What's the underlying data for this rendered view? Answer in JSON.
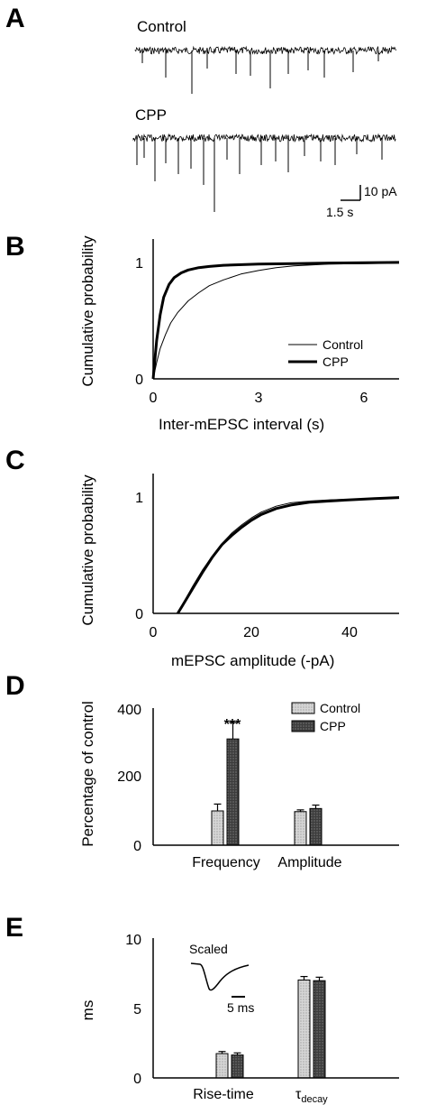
{
  "panels": {
    "a": "A",
    "b": "B",
    "c": "C",
    "d": "D",
    "e": "E"
  },
  "traces": {
    "control_label": "Control",
    "cpp_label": "CPP",
    "scale_y": "10 pA",
    "scale_x": "1.5 s"
  },
  "chart_data": [
    {
      "panel": "B",
      "type": "line",
      "ylabel": "Cumulative probability",
      "xlabel": "Inter-mEPSC interval (s)",
      "xlim": [
        0,
        7
      ],
      "ylim": [
        0,
        1.1
      ],
      "xticks": [
        "0",
        "3",
        "6"
      ],
      "yticks": [
        "0",
        "1"
      ],
      "legend_position": "bottom-right",
      "series": [
        {
          "name": "Control",
          "style": "thin",
          "x": [
            0,
            0.1,
            0.2,
            0.35,
            0.5,
            0.7,
            1.0,
            1.3,
            1.6,
            2.0,
            2.5,
            3.0,
            3.5,
            4.0,
            5.0,
            6.0,
            7.0
          ],
          "y": [
            0,
            0.14,
            0.26,
            0.38,
            0.48,
            0.57,
            0.67,
            0.74,
            0.8,
            0.85,
            0.9,
            0.93,
            0.955,
            0.97,
            0.985,
            0.99,
            0.995
          ]
        },
        {
          "name": "CPP",
          "style": "thick",
          "x": [
            0,
            0.1,
            0.2,
            0.3,
            0.45,
            0.6,
            0.8,
            1.0,
            1.3,
            1.6,
            2.0,
            3.0,
            4.0,
            5.0,
            7.0
          ],
          "y": [
            0,
            0.33,
            0.55,
            0.7,
            0.81,
            0.87,
            0.91,
            0.935,
            0.955,
            0.965,
            0.975,
            0.985,
            0.99,
            0.995,
            1.0
          ]
        }
      ]
    },
    {
      "panel": "C",
      "type": "line",
      "ylabel": "Cumulative probability",
      "xlabel": "mEPSC amplitude (-pA)",
      "xlim": [
        0,
        50
      ],
      "ylim": [
        0,
        1.1
      ],
      "xticks": [
        "0",
        "20",
        "40"
      ],
      "yticks": [
        "0",
        "1"
      ],
      "series": [
        {
          "name": "Control",
          "style": "thin",
          "x": [
            5,
            6,
            8,
            10,
            12,
            14,
            16,
            18,
            20,
            22,
            25,
            28,
            32,
            36,
            40,
            45,
            50
          ],
          "y": [
            0,
            0.08,
            0.23,
            0.37,
            0.49,
            0.6,
            0.69,
            0.76,
            0.82,
            0.87,
            0.92,
            0.95,
            0.965,
            0.975,
            0.98,
            0.99,
            1.0
          ]
        },
        {
          "name": "CPP",
          "style": "thick",
          "x": [
            5,
            6,
            8,
            10,
            12,
            14,
            16,
            18,
            20,
            22,
            25,
            28,
            32,
            36,
            40,
            45,
            50
          ],
          "y": [
            0,
            0.07,
            0.21,
            0.35,
            0.48,
            0.59,
            0.67,
            0.74,
            0.8,
            0.85,
            0.9,
            0.93,
            0.955,
            0.965,
            0.975,
            0.985,
            0.995
          ]
        }
      ]
    },
    {
      "panel": "D",
      "type": "bar",
      "ylabel": "Percentage of control",
      "categories": [
        "Frequency",
        "Amplitude"
      ],
      "ylim": [
        0,
        400
      ],
      "yticks": [
        "0",
        "200",
        "400"
      ],
      "legend_position": "top-right",
      "significance": "***",
      "series": [
        {
          "name": "Control",
          "values": [
            100,
            98
          ],
          "errors": [
            20,
            5
          ]
        },
        {
          "name": "CPP",
          "values": [
            310,
            107
          ],
          "errors": [
            48,
            10
          ]
        }
      ]
    },
    {
      "panel": "E",
      "type": "bar",
      "ylabel": "ms",
      "categories": [
        "Rise-time",
        "τdecay"
      ],
      "ylim": [
        0,
        10
      ],
      "yticks": [
        "0",
        "5",
        "10"
      ],
      "series": [
        {
          "name": "Control",
          "values": [
            1.75,
            7.05
          ],
          "errors": [
            0.15,
            0.25
          ]
        },
        {
          "name": "CPP",
          "values": [
            1.65,
            7.0
          ],
          "errors": [
            0.15,
            0.25
          ]
        }
      ],
      "inset": {
        "label": "Scaled",
        "scale": "5 ms"
      }
    }
  ],
  "colors": {
    "control_fill": "#cfcfcf",
    "cpp_fill": "#3a3a3a",
    "line": "#000000"
  }
}
